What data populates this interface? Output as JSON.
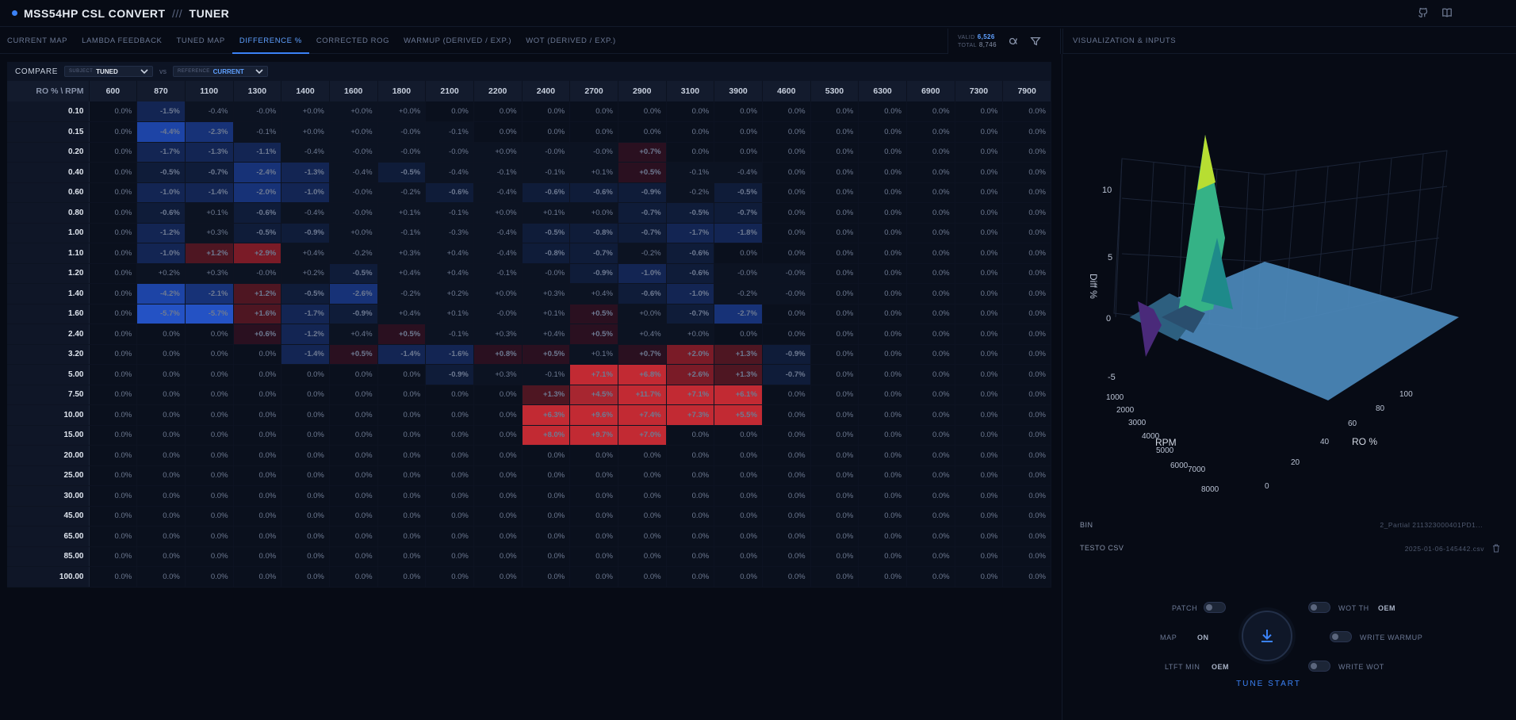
{
  "app": {
    "title": "MSS54HP CSL CONVERT",
    "separator": "///",
    "subtitle": "TUNER"
  },
  "tabs": [
    {
      "label": "CURRENT MAP"
    },
    {
      "label": "LAMBDA FEEDBACK"
    },
    {
      "label": "TUNED MAP"
    },
    {
      "label": "DIFFERENCE %"
    },
    {
      "label": "CORRECTED ROG"
    },
    {
      "label": "WARMUP (DERIVED / EXP.)"
    },
    {
      "label": "WOT (DERIVED / EXP.)"
    }
  ],
  "counts": {
    "valid_label": "VALID",
    "valid_value": "6,526",
    "total_label": "TOTAL",
    "total_value": "8,746"
  },
  "right_panel": {
    "title": "VISUALIZATION & INPUTS"
  },
  "compare": {
    "label": "COMPARE",
    "subject_key": "SUBJECT",
    "subject_value": "TUNED",
    "vs": "vs",
    "reference_key": "REFERENCE",
    "reference_value": "CURRENT"
  },
  "table": {
    "corner": "RO % \\ RPM",
    "columns": [
      "600",
      "870",
      "1100",
      "1300",
      "1400",
      "1600",
      "1800",
      "2100",
      "2200",
      "2400",
      "2700",
      "2900",
      "3100",
      "3900",
      "4600",
      "5300",
      "6300",
      "6900",
      "7300",
      "7900"
    ],
    "rows": [
      {
        "label": "0.10",
        "cells": [
          "0.0%",
          "-1.5%",
          "-0.4%",
          "-0.0%",
          "+0.0%",
          "+0.0%",
          "+0.0%",
          "0.0%",
          "0.0%",
          "0.0%",
          "0.0%",
          "0.0%",
          "0.0%",
          "0.0%",
          "0.0%",
          "0.0%",
          "0.0%",
          "0.0%",
          "0.0%",
          "0.0%"
        ]
      },
      {
        "label": "0.15",
        "cells": [
          "0.0%",
          "-4.4%",
          "-2.3%",
          "-0.1%",
          "+0.0%",
          "+0.0%",
          "-0.0%",
          "-0.1%",
          "0.0%",
          "0.0%",
          "0.0%",
          "0.0%",
          "0.0%",
          "0.0%",
          "0.0%",
          "0.0%",
          "0.0%",
          "0.0%",
          "0.0%",
          "0.0%"
        ]
      },
      {
        "label": "0.20",
        "cells": [
          "0.0%",
          "-1.7%",
          "-1.3%",
          "-1.1%",
          "-0.4%",
          "-0.0%",
          "-0.0%",
          "-0.0%",
          "+0.0%",
          "-0.0%",
          "-0.0%",
          "+0.7%",
          "0.0%",
          "0.0%",
          "0.0%",
          "0.0%",
          "0.0%",
          "0.0%",
          "0.0%",
          "0.0%"
        ]
      },
      {
        "label": "0.40",
        "cells": [
          "0.0%",
          "-0.5%",
          "-0.7%",
          "-2.4%",
          "-1.3%",
          "-0.4%",
          "-0.5%",
          "-0.4%",
          "-0.1%",
          "-0.1%",
          "+0.1%",
          "+0.5%",
          "-0.1%",
          "-0.4%",
          "0.0%",
          "0.0%",
          "0.0%",
          "0.0%",
          "0.0%",
          "0.0%"
        ]
      },
      {
        "label": "0.60",
        "cells": [
          "0.0%",
          "-1.0%",
          "-1.4%",
          "-2.0%",
          "-1.0%",
          "-0.0%",
          "-0.2%",
          "-0.6%",
          "-0.4%",
          "-0.6%",
          "-0.6%",
          "-0.9%",
          "-0.2%",
          "-0.5%",
          "0.0%",
          "0.0%",
          "0.0%",
          "0.0%",
          "0.0%",
          "0.0%"
        ]
      },
      {
        "label": "0.80",
        "cells": [
          "0.0%",
          "-0.6%",
          "+0.1%",
          "-0.6%",
          "-0.4%",
          "-0.0%",
          "+0.1%",
          "-0.1%",
          "+0.0%",
          "+0.1%",
          "+0.0%",
          "-0.7%",
          "-0.5%",
          "-0.7%",
          "0.0%",
          "0.0%",
          "0.0%",
          "0.0%",
          "0.0%",
          "0.0%"
        ]
      },
      {
        "label": "1.00",
        "cells": [
          "0.0%",
          "-1.2%",
          "+0.3%",
          "-0.5%",
          "-0.9%",
          "+0.0%",
          "-0.1%",
          "-0.3%",
          "-0.4%",
          "-0.5%",
          "-0.8%",
          "-0.7%",
          "-1.7%",
          "-1.8%",
          "0.0%",
          "0.0%",
          "0.0%",
          "0.0%",
          "0.0%",
          "0.0%"
        ]
      },
      {
        "label": "1.10",
        "cells": [
          "0.0%",
          "-1.0%",
          "+1.2%",
          "+2.9%",
          "+0.4%",
          "-0.2%",
          "+0.3%",
          "+0.4%",
          "-0.4%",
          "-0.8%",
          "-0.7%",
          "-0.2%",
          "-0.6%",
          "0.0%",
          "0.0%",
          "0.0%",
          "0.0%",
          "0.0%",
          "0.0%",
          "0.0%"
        ]
      },
      {
        "label": "1.20",
        "cells": [
          "0.0%",
          "+0.2%",
          "+0.3%",
          "-0.0%",
          "+0.2%",
          "-0.5%",
          "+0.4%",
          "+0.4%",
          "-0.1%",
          "-0.0%",
          "-0.9%",
          "-1.0%",
          "-0.6%",
          "-0.0%",
          "-0.0%",
          "0.0%",
          "0.0%",
          "0.0%",
          "0.0%",
          "0.0%"
        ]
      },
      {
        "label": "1.40",
        "cells": [
          "0.0%",
          "-4.2%",
          "-2.1%",
          "+1.2%",
          "-0.5%",
          "-2.6%",
          "-0.2%",
          "+0.2%",
          "+0.0%",
          "+0.3%",
          "+0.4%",
          "-0.6%",
          "-1.0%",
          "-0.2%",
          "-0.0%",
          "0.0%",
          "0.0%",
          "0.0%",
          "0.0%",
          "0.0%"
        ]
      },
      {
        "label": "1.60",
        "cells": [
          "0.0%",
          "-5.7%",
          "-5.7%",
          "+1.6%",
          "-1.7%",
          "-0.9%",
          "+0.4%",
          "+0.1%",
          "-0.0%",
          "+0.1%",
          "+0.5%",
          "+0.0%",
          "-0.7%",
          "-2.7%",
          "0.0%",
          "0.0%",
          "0.0%",
          "0.0%",
          "0.0%",
          "0.0%"
        ]
      },
      {
        "label": "2.40",
        "cells": [
          "0.0%",
          "0.0%",
          "0.0%",
          "+0.6%",
          "-1.2%",
          "+0.4%",
          "+0.5%",
          "-0.1%",
          "+0.3%",
          "+0.4%",
          "+0.5%",
          "+0.4%",
          "+0.0%",
          "0.0%",
          "0.0%",
          "0.0%",
          "0.0%",
          "0.0%",
          "0.0%",
          "0.0%"
        ]
      },
      {
        "label": "3.20",
        "cells": [
          "0.0%",
          "0.0%",
          "0.0%",
          "0.0%",
          "-1.4%",
          "+0.5%",
          "-1.4%",
          "-1.6%",
          "+0.8%",
          "+0.5%",
          "+0.1%",
          "+0.7%",
          "+2.0%",
          "+1.3%",
          "-0.9%",
          "0.0%",
          "0.0%",
          "0.0%",
          "0.0%",
          "0.0%"
        ]
      },
      {
        "label": "5.00",
        "cells": [
          "0.0%",
          "0.0%",
          "0.0%",
          "0.0%",
          "0.0%",
          "0.0%",
          "0.0%",
          "-0.9%",
          "+0.3%",
          "-0.1%",
          "+7.1%",
          "+6.8%",
          "+2.6%",
          "+1.3%",
          "-0.7%",
          "0.0%",
          "0.0%",
          "0.0%",
          "0.0%",
          "0.0%"
        ]
      },
      {
        "label": "7.50",
        "cells": [
          "0.0%",
          "0.0%",
          "0.0%",
          "0.0%",
          "0.0%",
          "0.0%",
          "0.0%",
          "0.0%",
          "0.0%",
          "+1.3%",
          "+4.5%",
          "+11.7%",
          "+7.1%",
          "+6.1%",
          "0.0%",
          "0.0%",
          "0.0%",
          "0.0%",
          "0.0%",
          "0.0%"
        ]
      },
      {
        "label": "10.00",
        "cells": [
          "0.0%",
          "0.0%",
          "0.0%",
          "0.0%",
          "0.0%",
          "0.0%",
          "0.0%",
          "0.0%",
          "0.0%",
          "+6.3%",
          "+9.6%",
          "+7.4%",
          "+7.3%",
          "+5.5%",
          "0.0%",
          "0.0%",
          "0.0%",
          "0.0%",
          "0.0%",
          "0.0%"
        ]
      },
      {
        "label": "15.00",
        "cells": [
          "0.0%",
          "0.0%",
          "0.0%",
          "0.0%",
          "0.0%",
          "0.0%",
          "0.0%",
          "0.0%",
          "0.0%",
          "+8.0%",
          "+9.7%",
          "+7.0%",
          "0.0%",
          "0.0%",
          "0.0%",
          "0.0%",
          "0.0%",
          "0.0%",
          "0.0%",
          "0.0%"
        ]
      },
      {
        "label": "20.00",
        "cells": [
          "0.0%",
          "0.0%",
          "0.0%",
          "0.0%",
          "0.0%",
          "0.0%",
          "0.0%",
          "0.0%",
          "0.0%",
          "0.0%",
          "0.0%",
          "0.0%",
          "0.0%",
          "0.0%",
          "0.0%",
          "0.0%",
          "0.0%",
          "0.0%",
          "0.0%",
          "0.0%"
        ]
      },
      {
        "label": "25.00",
        "cells": [
          "0.0%",
          "0.0%",
          "0.0%",
          "0.0%",
          "0.0%",
          "0.0%",
          "0.0%",
          "0.0%",
          "0.0%",
          "0.0%",
          "0.0%",
          "0.0%",
          "0.0%",
          "0.0%",
          "0.0%",
          "0.0%",
          "0.0%",
          "0.0%",
          "0.0%",
          "0.0%"
        ]
      },
      {
        "label": "30.00",
        "cells": [
          "0.0%",
          "0.0%",
          "0.0%",
          "0.0%",
          "0.0%",
          "0.0%",
          "0.0%",
          "0.0%",
          "0.0%",
          "0.0%",
          "0.0%",
          "0.0%",
          "0.0%",
          "0.0%",
          "0.0%",
          "0.0%",
          "0.0%",
          "0.0%",
          "0.0%",
          "0.0%"
        ]
      },
      {
        "label": "45.00",
        "cells": [
          "0.0%",
          "0.0%",
          "0.0%",
          "0.0%",
          "0.0%",
          "0.0%",
          "0.0%",
          "0.0%",
          "0.0%",
          "0.0%",
          "0.0%",
          "0.0%",
          "0.0%",
          "0.0%",
          "0.0%",
          "0.0%",
          "0.0%",
          "0.0%",
          "0.0%",
          "0.0%"
        ]
      },
      {
        "label": "65.00",
        "cells": [
          "0.0%",
          "0.0%",
          "0.0%",
          "0.0%",
          "0.0%",
          "0.0%",
          "0.0%",
          "0.0%",
          "0.0%",
          "0.0%",
          "0.0%",
          "0.0%",
          "0.0%",
          "0.0%",
          "0.0%",
          "0.0%",
          "0.0%",
          "0.0%",
          "0.0%",
          "0.0%"
        ]
      },
      {
        "label": "85.00",
        "cells": [
          "0.0%",
          "0.0%",
          "0.0%",
          "0.0%",
          "0.0%",
          "0.0%",
          "0.0%",
          "0.0%",
          "0.0%",
          "0.0%",
          "0.0%",
          "0.0%",
          "0.0%",
          "0.0%",
          "0.0%",
          "0.0%",
          "0.0%",
          "0.0%",
          "0.0%",
          "0.0%"
        ]
      },
      {
        "label": "100.00",
        "cells": [
          "0.0%",
          "0.0%",
          "0.0%",
          "0.0%",
          "0.0%",
          "0.0%",
          "0.0%",
          "0.0%",
          "0.0%",
          "0.0%",
          "0.0%",
          "0.0%",
          "0.0%",
          "0.0%",
          "0.0%",
          "0.0%",
          "0.0%",
          "0.0%",
          "0.0%",
          "0.0%"
        ]
      }
    ]
  },
  "plot": {
    "z_label": "Diff %",
    "x_label": "RPM",
    "y_label": "RO %",
    "z_ticks": [
      "10",
      "5",
      "0",
      "-5"
    ],
    "rpm_ticks": [
      "1000",
      "2000",
      "3000",
      "4000",
      "5000",
      "6000",
      "7000",
      "8000"
    ],
    "ro_ticks": [
      "0",
      "20",
      "40",
      "60",
      "80",
      "100"
    ]
  },
  "files": {
    "bin_label": "BIN",
    "bin_value": "2_Partial 211323000401PD1...",
    "csv_label": "TESTO CSV",
    "csv_value": "2025-01-06-145442.csv"
  },
  "controls": {
    "patch_label": "PATCH",
    "map_label": "MAP",
    "map_value": "ON",
    "ltft_label": "LTFT MIN",
    "ltft_value": "OEM",
    "wot_th_label": "WOT TH",
    "wot_th_value": "OEM",
    "write_warmup_label": "WRITE WARMUP",
    "write_wot_label": "WRITE WOT",
    "tune_label": "TUNE START"
  }
}
